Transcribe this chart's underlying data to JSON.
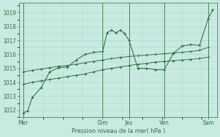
{
  "xlabel": "Pression niveau de la mer( hPa )",
  "background_color": "#c8eae0",
  "grid_color": "#a8d4c8",
  "line_color": "#2d6e3e",
  "ylim": [
    1011.5,
    1019.7
  ],
  "yticks": [
    1012,
    1013,
    1014,
    1015,
    1016,
    1017,
    1018,
    1019
  ],
  "x_day_labels": [
    "Mer",
    "Dim",
    "Jeu",
    "Ven",
    "Sam"
  ],
  "x_day_positions": [
    0,
    18,
    24,
    32,
    42
  ],
  "xlim": [
    -1,
    44
  ],
  "vlines": [
    0,
    18,
    24,
    32,
    42
  ],
  "series1_x": [
    0,
    1,
    2,
    4,
    6,
    8,
    10,
    12,
    14,
    16,
    18,
    19,
    20,
    21,
    22,
    23,
    24,
    26,
    28,
    30,
    32,
    34,
    36,
    38,
    40,
    42,
    43
  ],
  "series1_y": [
    1011.8,
    1011.95,
    1012.9,
    1013.6,
    1014.75,
    1015.05,
    1015.1,
    1015.6,
    1016.0,
    1016.15,
    1016.2,
    1017.55,
    1017.75,
    1017.55,
    1017.75,
    1017.5,
    1017.0,
    1015.0,
    1015.0,
    1014.9,
    1014.9,
    1016.05,
    1016.6,
    1016.7,
    1016.65,
    1018.6,
    1019.2
  ],
  "series2_x": [
    0,
    2,
    4,
    6,
    8,
    10,
    12,
    14,
    16,
    18,
    20,
    22,
    24,
    26,
    28,
    30,
    32,
    34,
    36,
    38,
    40,
    42
  ],
  "series2_y": [
    1013.85,
    1014.0,
    1014.1,
    1014.2,
    1014.3,
    1014.4,
    1014.5,
    1014.6,
    1014.75,
    1014.9,
    1015.0,
    1015.1,
    1015.2,
    1015.3,
    1015.35,
    1015.45,
    1015.5,
    1015.55,
    1015.6,
    1015.65,
    1015.7,
    1015.8
  ],
  "series3_x": [
    0,
    2,
    4,
    6,
    8,
    10,
    12,
    14,
    16,
    18,
    20,
    22,
    24,
    26,
    28,
    30,
    32,
    34,
    36,
    38,
    40,
    42
  ],
  "series3_y": [
    1014.75,
    1014.85,
    1014.95,
    1015.05,
    1015.15,
    1015.2,
    1015.3,
    1015.4,
    1015.5,
    1015.6,
    1015.7,
    1015.78,
    1015.85,
    1015.9,
    1015.95,
    1016.0,
    1016.05,
    1016.1,
    1016.15,
    1016.2,
    1016.3,
    1016.5
  ]
}
